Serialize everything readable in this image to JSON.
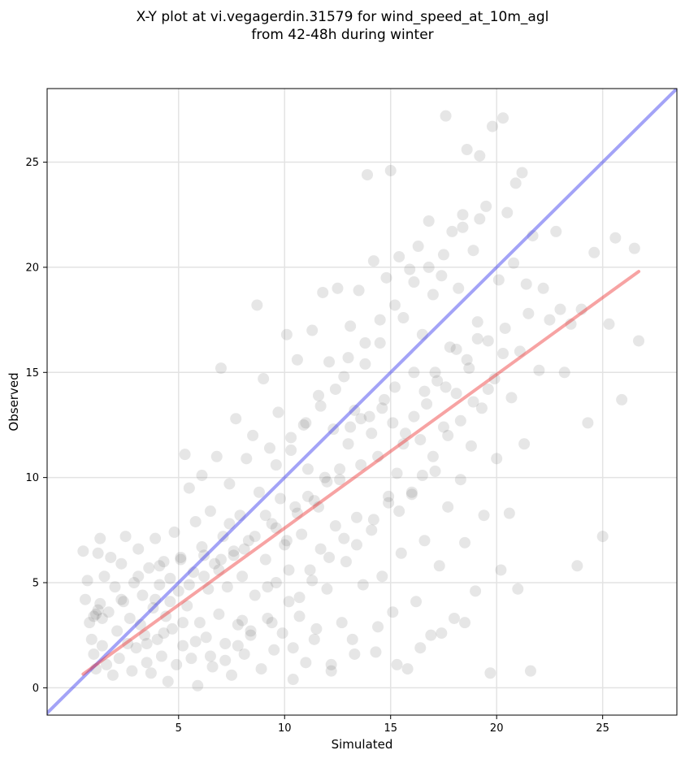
{
  "chart_data": {
    "type": "scatter",
    "title": "X-Y plot at vi.vegagerdin.31579 for wind_speed_at_10m_agl\nfrom 42-48h during winter",
    "xlabel": "Simulated",
    "ylabel": "Observed",
    "xlim": [
      -1.2,
      28.5
    ],
    "ylim": [
      -1.3,
      28.5
    ],
    "xticks": [
      5,
      10,
      15,
      20,
      25
    ],
    "yticks": [
      0,
      5,
      10,
      15,
      20,
      25
    ],
    "grid": true,
    "point_color": "#555555",
    "point_opacity": 0.15,
    "reference_lines": [
      {
        "kind": "identity",
        "color": "#3333ee",
        "x": [
          -1.2,
          28.5
        ],
        "y": [
          -1.2,
          28.5
        ]
      },
      {
        "kind": "fit",
        "color": "#ee3333",
        "x": [
          0.5,
          26.7
        ],
        "y": [
          0.65,
          19.8
        ]
      }
    ],
    "points": [
      [
        0.5,
        6.5
      ],
      [
        0.6,
        4.2
      ],
      [
        0.7,
        5.1
      ],
      [
        0.8,
        3.1
      ],
      [
        0.9,
        2.3
      ],
      [
        1.0,
        1.6
      ],
      [
        1.1,
        3.5
      ],
      [
        1.1,
        0.9
      ],
      [
        1.2,
        6.4
      ],
      [
        1.3,
        7.1
      ],
      [
        1.3,
        4.0
      ],
      [
        1.4,
        2.0
      ],
      [
        1.5,
        5.3
      ],
      [
        1.6,
        1.1
      ],
      [
        1.7,
        3.6
      ],
      [
        1.8,
        6.2
      ],
      [
        1.9,
        0.6
      ],
      [
        2.0,
        4.8
      ],
      [
        2.1,
        2.7
      ],
      [
        2.2,
        1.4
      ],
      [
        2.3,
        5.9
      ],
      [
        2.4,
        4.1
      ],
      [
        2.5,
        7.2
      ],
      [
        2.6,
        2.1
      ],
      [
        2.7,
        3.3
      ],
      [
        2.8,
        0.8
      ],
      [
        2.9,
        5.0
      ],
      [
        3.0,
        1.9
      ],
      [
        3.1,
        6.6
      ],
      [
        3.2,
        3.0
      ],
      [
        3.3,
        4.4
      ],
      [
        3.4,
        2.5
      ],
      [
        3.5,
        1.2
      ],
      [
        3.6,
        5.7
      ],
      [
        3.7,
        0.7
      ],
      [
        3.8,
        3.8
      ],
      [
        3.9,
        7.1
      ],
      [
        4.0,
        2.3
      ],
      [
        4.1,
        4.9
      ],
      [
        4.2,
        1.5
      ],
      [
        4.3,
        6.0
      ],
      [
        4.4,
        3.4
      ],
      [
        4.5,
        0.3
      ],
      [
        4.6,
        5.2
      ],
      [
        4.7,
        2.8
      ],
      [
        4.8,
        7.4
      ],
      [
        4.9,
        1.1
      ],
      [
        5.0,
        4.6
      ],
      [
        5.1,
        6.1
      ],
      [
        5.2,
        2.0
      ],
      [
        5.3,
        11.1
      ],
      [
        5.4,
        3.9
      ],
      [
        5.5,
        9.5
      ],
      [
        5.6,
        1.4
      ],
      [
        5.7,
        5.5
      ],
      [
        5.8,
        7.9
      ],
      [
        5.9,
        0.1
      ],
      [
        6.0,
        3.1
      ],
      [
        6.1,
        10.1
      ],
      [
        6.2,
        6.3
      ],
      [
        6.3,
        2.4
      ],
      [
        6.4,
        4.7
      ],
      [
        6.5,
        8.4
      ],
      [
        6.6,
        1.0
      ],
      [
        6.7,
        5.9
      ],
      [
        6.8,
        11.0
      ],
      [
        6.9,
        3.5
      ],
      [
        7.0,
        15.2
      ],
      [
        7.1,
        7.2
      ],
      [
        7.2,
        2.1
      ],
      [
        7.3,
        4.8
      ],
      [
        7.4,
        9.7
      ],
      [
        7.5,
        0.6
      ],
      [
        7.6,
        6.5
      ],
      [
        7.7,
        12.8
      ],
      [
        7.8,
        3.0
      ],
      [
        7.9,
        8.2
      ],
      [
        8.0,
        5.3
      ],
      [
        8.1,
        1.6
      ],
      [
        8.2,
        10.9
      ],
      [
        8.3,
        7.0
      ],
      [
        8.4,
        2.7
      ],
      [
        8.5,
        12.0
      ],
      [
        8.6,
        4.4
      ],
      [
        8.7,
        18.2
      ],
      [
        8.8,
        9.3
      ],
      [
        8.9,
        0.9
      ],
      [
        9.0,
        14.7
      ],
      [
        9.1,
        6.1
      ],
      [
        9.2,
        3.3
      ],
      [
        9.3,
        11.4
      ],
      [
        9.4,
        7.8
      ],
      [
        9.5,
        1.8
      ],
      [
        9.6,
        5.0
      ],
      [
        9.7,
        13.1
      ],
      [
        9.8,
        9.0
      ],
      [
        9.9,
        2.6
      ],
      [
        10.0,
        6.8
      ],
      [
        10.1,
        16.8
      ],
      [
        10.2,
        4.1
      ],
      [
        10.3,
        11.9
      ],
      [
        10.4,
        0.4
      ],
      [
        10.5,
        8.6
      ],
      [
        10.6,
        15.6
      ],
      [
        10.7,
        3.4
      ],
      [
        10.8,
        7.3
      ],
      [
        10.9,
        12.5
      ],
      [
        11.0,
        1.2
      ],
      [
        11.1,
        10.4
      ],
      [
        11.2,
        5.6
      ],
      [
        11.3,
        17.0
      ],
      [
        11.4,
        8.9
      ],
      [
        11.5,
        2.8
      ],
      [
        11.6,
        13.9
      ],
      [
        11.7,
        6.6
      ],
      [
        11.8,
        18.8
      ],
      [
        11.9,
        10.0
      ],
      [
        12.0,
        4.7
      ],
      [
        12.1,
        15.5
      ],
      [
        12.2,
        1.1
      ],
      [
        12.3,
        12.3
      ],
      [
        12.4,
        7.7
      ],
      [
        12.5,
        19.0
      ],
      [
        12.6,
        9.9
      ],
      [
        12.7,
        3.1
      ],
      [
        12.8,
        14.8
      ],
      [
        12.9,
        6.0
      ],
      [
        13.0,
        11.6
      ],
      [
        13.1,
        17.2
      ],
      [
        13.2,
        2.3
      ],
      [
        13.3,
        13.2
      ],
      [
        13.4,
        8.1
      ],
      [
        13.5,
        18.9
      ],
      [
        13.6,
        10.6
      ],
      [
        13.7,
        4.9
      ],
      [
        13.8,
        15.4
      ],
      [
        13.9,
        24.4
      ],
      [
        14.0,
        12.9
      ],
      [
        14.1,
        7.5
      ],
      [
        14.2,
        20.3
      ],
      [
        14.3,
        1.7
      ],
      [
        14.4,
        11.0
      ],
      [
        14.5,
        16.4
      ],
      [
        14.6,
        5.3
      ],
      [
        14.7,
        13.7
      ],
      [
        14.8,
        19.5
      ],
      [
        14.9,
        8.8
      ],
      [
        15.0,
        24.6
      ],
      [
        15.1,
        3.6
      ],
      [
        15.2,
        14.3
      ],
      [
        15.3,
        10.2
      ],
      [
        15.4,
        20.5
      ],
      [
        15.5,
        6.4
      ],
      [
        15.6,
        17.6
      ],
      [
        15.7,
        12.1
      ],
      [
        15.8,
        0.9
      ],
      [
        15.9,
        19.9
      ],
      [
        16.0,
        9.2
      ],
      [
        16.1,
        15.0
      ],
      [
        16.2,
        4.1
      ],
      [
        16.3,
        21.0
      ],
      [
        16.4,
        11.8
      ],
      [
        16.5,
        16.8
      ],
      [
        16.6,
        7.0
      ],
      [
        16.7,
        13.5
      ],
      [
        16.8,
        22.2
      ],
      [
        16.9,
        2.5
      ],
      [
        17.0,
        18.7
      ],
      [
        17.1,
        10.3
      ],
      [
        17.2,
        14.6
      ],
      [
        17.3,
        5.8
      ],
      [
        17.4,
        19.6
      ],
      [
        17.5,
        12.4
      ],
      [
        17.6,
        27.2
      ],
      [
        17.7,
        8.6
      ],
      [
        17.8,
        16.2
      ],
      [
        17.9,
        21.7
      ],
      [
        18.0,
        3.3
      ],
      [
        18.1,
        14.0
      ],
      [
        18.2,
        19.0
      ],
      [
        18.3,
        9.9
      ],
      [
        18.4,
        22.5
      ],
      [
        18.5,
        6.9
      ],
      [
        18.6,
        25.6
      ],
      [
        18.7,
        15.2
      ],
      [
        18.8,
        11.5
      ],
      [
        18.9,
        20.8
      ],
      [
        19.0,
        4.6
      ],
      [
        19.1,
        17.4
      ],
      [
        19.2,
        25.3
      ],
      [
        19.3,
        13.3
      ],
      [
        19.4,
        8.2
      ],
      [
        19.5,
        22.9
      ],
      [
        19.6,
        16.5
      ],
      [
        19.7,
        0.7
      ],
      [
        19.8,
        26.7
      ],
      [
        19.9,
        14.7
      ],
      [
        20.0,
        10.9
      ],
      [
        20.1,
        19.4
      ],
      [
        20.2,
        5.6
      ],
      [
        20.3,
        27.1
      ],
      [
        20.4,
        17.1
      ],
      [
        20.5,
        22.6
      ],
      [
        20.6,
        8.3
      ],
      [
        20.7,
        13.8
      ],
      [
        20.8,
        20.2
      ],
      [
        20.9,
        24.0
      ],
      [
        21.0,
        4.7
      ],
      [
        21.1,
        16.0
      ],
      [
        21.2,
        24.5
      ],
      [
        21.3,
        11.6
      ],
      [
        21.4,
        19.2
      ],
      [
        21.5,
        17.8
      ],
      [
        21.6,
        0.8
      ],
      [
        21.7,
        21.5
      ],
      [
        22.0,
        15.1
      ],
      [
        22.2,
        19.0
      ],
      [
        22.5,
        17.5
      ],
      [
        22.8,
        21.7
      ],
      [
        23.0,
        18.0
      ],
      [
        23.2,
        15.0
      ],
      [
        23.5,
        17.3
      ],
      [
        23.8,
        5.8
      ],
      [
        24.0,
        18.0
      ],
      [
        24.3,
        12.6
      ],
      [
        24.6,
        20.7
      ],
      [
        25.0,
        7.2
      ],
      [
        25.3,
        17.3
      ],
      [
        25.6,
        21.4
      ],
      [
        25.9,
        13.7
      ],
      [
        26.5,
        20.9
      ],
      [
        26.7,
        16.5
      ],
      [
        1.0,
        3.4
      ],
      [
        1.2,
        3.7
      ],
      [
        1.4,
        3.3
      ],
      [
        2.3,
        4.2
      ],
      [
        3.1,
        5.3
      ],
      [
        4.1,
        5.8
      ],
      [
        5.1,
        6.2
      ],
      [
        6.1,
        6.7
      ],
      [
        7.0,
        6.1
      ],
      [
        7.6,
        6.3
      ],
      [
        8.1,
        6.6
      ],
      [
        8.6,
        7.2
      ],
      [
        9.1,
        8.2
      ],
      [
        9.6,
        7.6
      ],
      [
        10.1,
        7.0
      ],
      [
        10.6,
        8.3
      ],
      [
        11.1,
        9.1
      ],
      [
        11.6,
        8.6
      ],
      [
        12.0,
        9.8
      ],
      [
        12.6,
        10.4
      ],
      [
        13.1,
        12.4
      ],
      [
        13.6,
        12.8
      ],
      [
        14.1,
        12.1
      ],
      [
        14.6,
        13.3
      ],
      [
        15.1,
        12.6
      ],
      [
        15.6,
        11.6
      ],
      [
        16.1,
        12.9
      ],
      [
        16.6,
        14.1
      ],
      [
        17.1,
        15.0
      ],
      [
        17.6,
        14.3
      ],
      [
        18.1,
        16.1
      ],
      [
        18.6,
        15.6
      ],
      [
        19.1,
        16.6
      ],
      [
        8.0,
        3.2
      ],
      [
        9.2,
        4.8
      ],
      [
        10.2,
        5.6
      ],
      [
        10.7,
        4.3
      ],
      [
        11.3,
        5.1
      ],
      [
        12.1,
        6.2
      ],
      [
        12.8,
        7.1
      ],
      [
        13.4,
        6.8
      ],
      [
        14.2,
        8.0
      ],
      [
        14.9,
        9.1
      ],
      [
        15.4,
        8.4
      ],
      [
        16.0,
        9.3
      ],
      [
        16.5,
        10.1
      ],
      [
        17.0,
        11.0
      ],
      [
        17.7,
        12.0
      ],
      [
        18.3,
        12.7
      ],
      [
        18.9,
        13.6
      ],
      [
        19.6,
        14.2
      ],
      [
        20.3,
        15.9
      ],
      [
        3.5,
        2.1
      ],
      [
        4.3,
        2.6
      ],
      [
        5.2,
        3.1
      ],
      [
        5.8,
        2.2
      ],
      [
        6.5,
        1.5
      ],
      [
        7.2,
        1.3
      ],
      [
        7.8,
        2.0
      ],
      [
        8.4,
        2.5
      ],
      [
        9.4,
        3.1
      ],
      [
        10.4,
        1.9
      ],
      [
        11.4,
        2.3
      ],
      [
        12.2,
        0.8
      ],
      [
        13.3,
        1.6
      ],
      [
        14.4,
        2.9
      ],
      [
        15.3,
        1.1
      ],
      [
        16.4,
        1.9
      ],
      [
        17.4,
        2.6
      ],
      [
        18.5,
        3.1
      ],
      [
        9.6,
        10.6
      ],
      [
        10.3,
        11.3
      ],
      [
        11.0,
        12.6
      ],
      [
        11.7,
        13.4
      ],
      [
        12.4,
        14.2
      ],
      [
        13.0,
        15.7
      ],
      [
        13.8,
        16.4
      ],
      [
        14.5,
        17.5
      ],
      [
        15.2,
        18.2
      ],
      [
        16.1,
        19.3
      ],
      [
        16.8,
        20.0
      ],
      [
        17.5,
        20.6
      ],
      [
        18.4,
        21.9
      ],
      [
        19.2,
        22.3
      ],
      [
        3.9,
        4.2
      ],
      [
        4.6,
        4.1
      ],
      [
        5.5,
        4.9
      ],
      [
        6.2,
        5.3
      ],
      [
        6.9,
        5.6
      ],
      [
        7.4,
        7.8
      ]
    ]
  }
}
